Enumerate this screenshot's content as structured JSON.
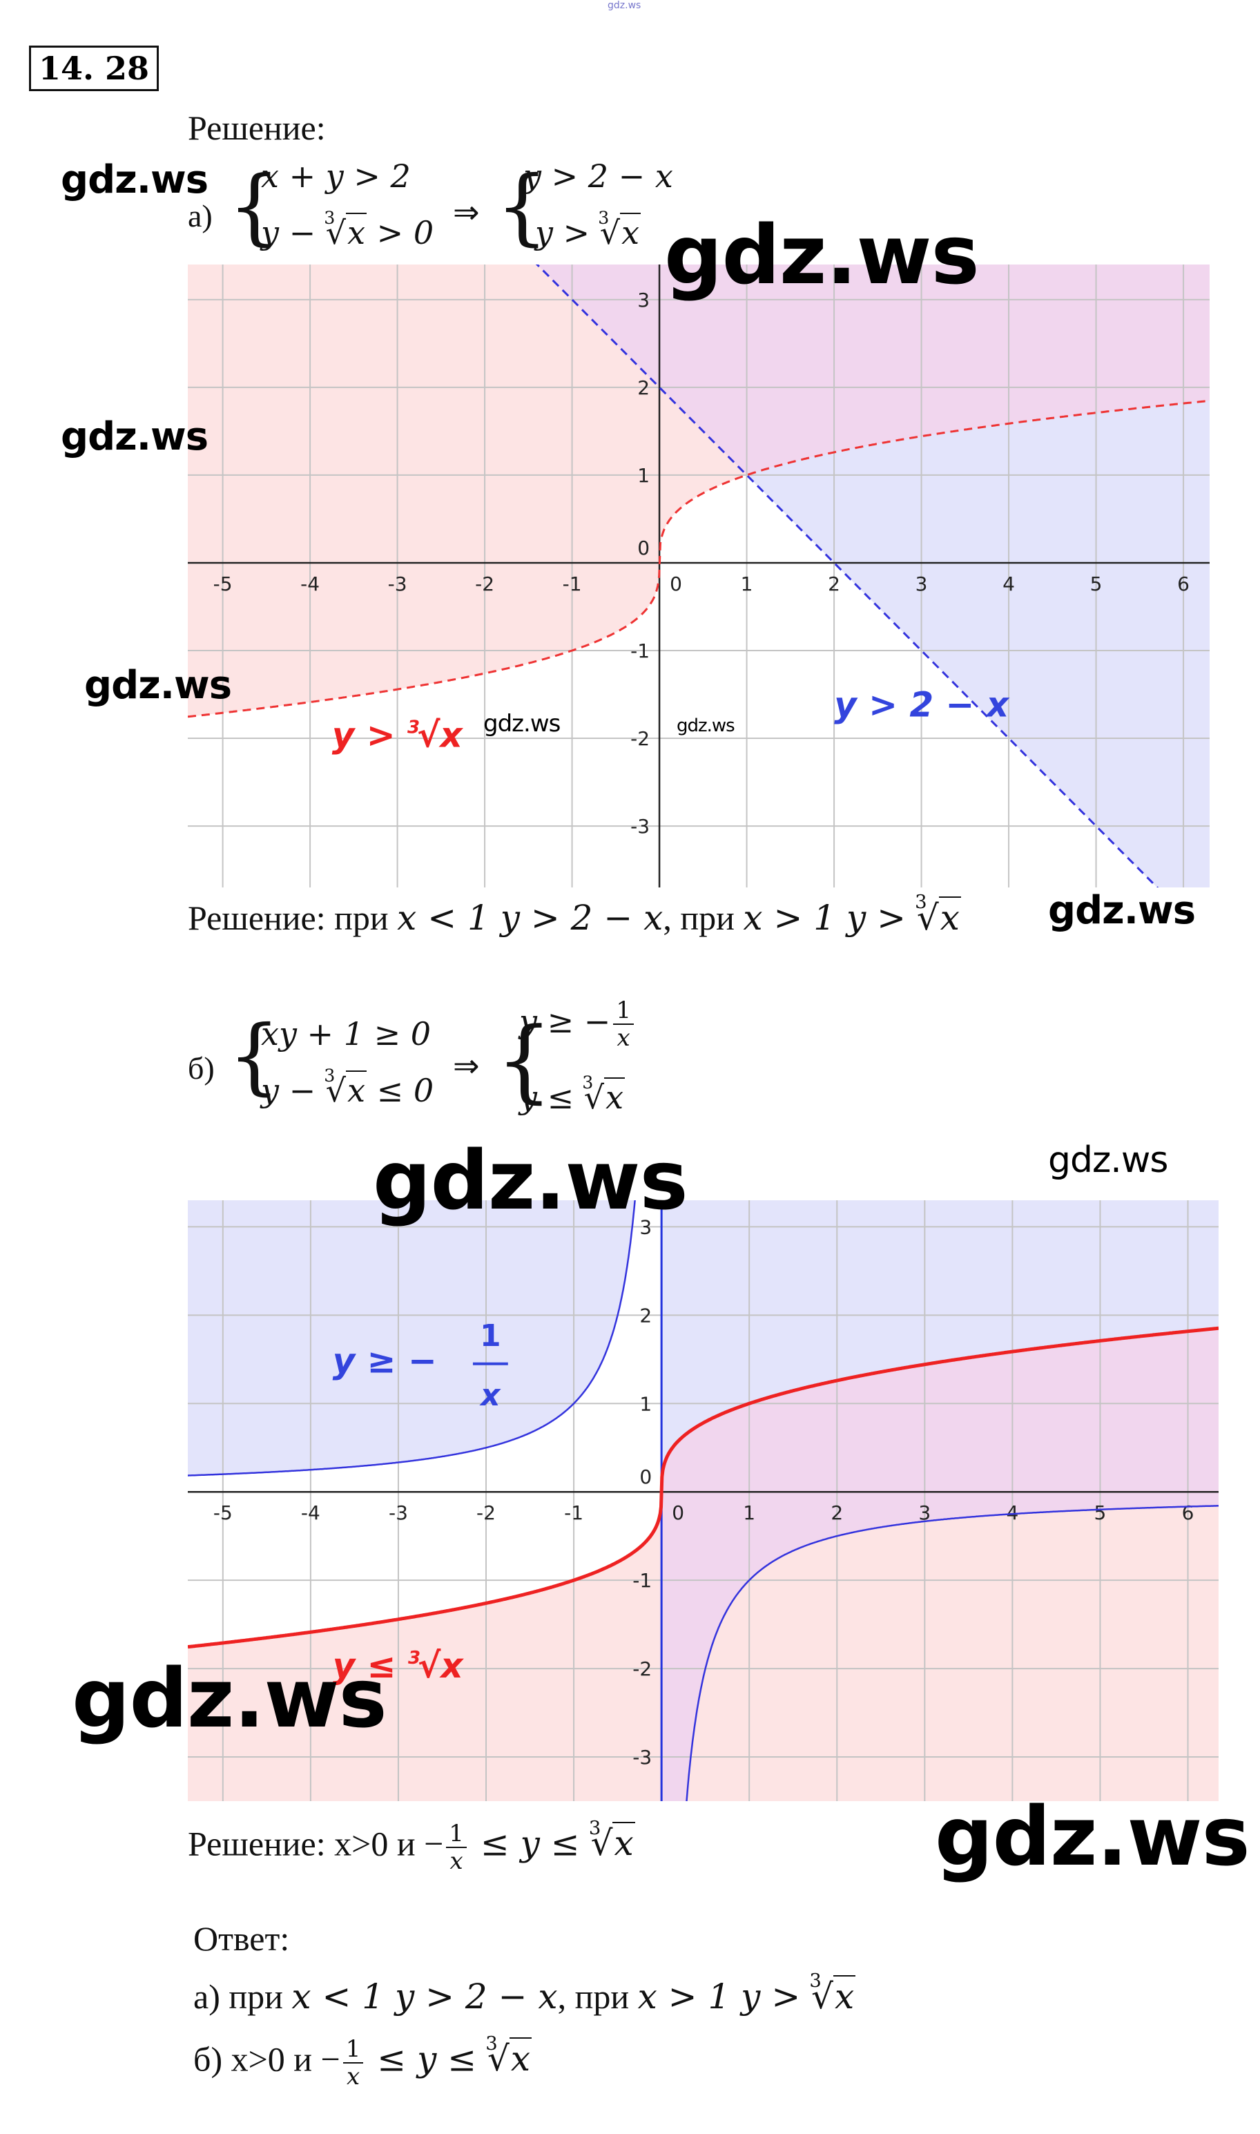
{
  "header": {
    "site_small": "gdz.ws",
    "problem_number": "14. 28"
  },
  "part_a": {
    "solution_heading": "Решение:",
    "label": "а)",
    "sys1_line1": "x + y > 2",
    "sys1_line2_pre": "y − ",
    "sys1_line2_post": " > 0",
    "implies": "⇒",
    "sys2_line1": "y > 2 − x",
    "sys2_line2_pre": "y > ",
    "root_index": "3",
    "root_arg": "x",
    "result": {
      "prefix": "Решение: при ",
      "cond1": "x < 1 y > 2 − x",
      "mid": ", при ",
      "cond2": "x > 1 y > "
    }
  },
  "part_b": {
    "label": "б)",
    "sys1_line1": "xy + 1 ≥ 0",
    "sys1_line2_pre": "y − ",
    "sys1_line2_post": " ≤ 0",
    "implies": "⇒",
    "sys2_line1_pre": "y ≥ −",
    "frac_num": "1",
    "frac_den": "x",
    "sys2_line2_pre": "y ≤ ",
    "result": {
      "prefix": "Решение: x>0 и −",
      "mid": " ≤ y ≤ "
    }
  },
  "answer": {
    "heading": "Ответ:",
    "a_prefix": "а) при ",
    "a_cond1": "x < 1 y > 2 − x",
    "a_mid": ", при ",
    "a_cond2": "x > 1 y > ",
    "b_prefix": "б) x>0 и −",
    "b_mid": " ≤ y ≤ "
  },
  "watermarks": [
    "gdz.ws",
    "gdz.ws",
    "gdz.ws",
    "gdz.ws",
    "gdz.ws",
    "gdz.ws",
    "gdz.ws",
    "gdz.ws",
    "gdz.ws",
    "gdz.ws",
    "gdz.ws"
  ],
  "chart_data": [
    {
      "type": "area",
      "xlim": [
        -5.4,
        6.3
      ],
      "ylim": [
        -3.7,
        3.4
      ],
      "x_ticks": [
        "-5",
        "-4",
        "-3",
        "-2",
        "-1",
        "0",
        "1",
        "2",
        "3",
        "4",
        "5",
        "6"
      ],
      "y_ticks": [
        "3",
        "2",
        "1",
        "0",
        "-1",
        "-2",
        "-3"
      ],
      "grid": true,
      "series": [
        {
          "name": "y > 2 − x",
          "formula": "y = 2 − x",
          "style": "dashed",
          "color": "#3333dd"
        },
        {
          "name": "y > ∛x",
          "formula": "y = cbrt(x)",
          "style": "dashed",
          "color": "#ee3333"
        }
      ],
      "labels": {
        "line": "y > 2 − x",
        "curve_pre": "y > ",
        "root_index": "3",
        "root_arg": "x"
      },
      "colors": {
        "red_region": "#fde4e4",
        "blue_region": "#e3e4fb",
        "overlap": "#f1d6ee"
      }
    },
    {
      "type": "area",
      "xlim": [
        -5.4,
        6.35
      ],
      "ylim": [
        -3.5,
        3.3
      ],
      "x_ticks": [
        "-5",
        "-4",
        "-3",
        "-2",
        "-1",
        "0",
        "1",
        "2",
        "3",
        "4",
        "5",
        "6"
      ],
      "y_ticks": [
        "3",
        "2",
        "1",
        "0",
        "-1",
        "-2",
        "-3"
      ],
      "grid": true,
      "series": [
        {
          "name": "y ≥ −1/x",
          "formula": "y = −1/x",
          "style": "solid",
          "color": "#3333dd"
        },
        {
          "name": "y ≤ ∛x",
          "formula": "y = cbrt(x)",
          "style": "solid",
          "color": "#ee2222"
        }
      ],
      "labels": {
        "hyp_pre": "y ≥ −",
        "hyp_num": "1",
        "hyp_den": "x",
        "curve_pre": "y ≤ ",
        "root_index": "3",
        "root_arg": "x"
      },
      "colors": {
        "red_region": "#fde4e4",
        "blue_region": "#e3e4fb",
        "overlap": "#f1d6ee"
      }
    }
  ]
}
